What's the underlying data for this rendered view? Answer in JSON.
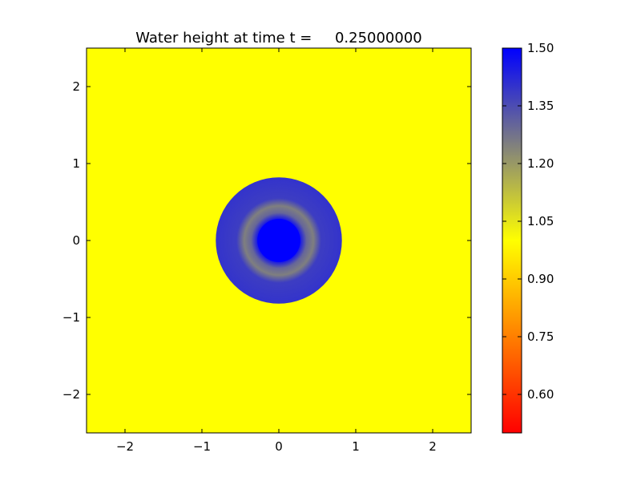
{
  "chart_data": {
    "type": "heatmap",
    "title": "Water height at time t =     0.25000000",
    "xlabel": "",
    "ylabel": "",
    "xlim": [
      -2.5,
      2.5
    ],
    "ylim": [
      -2.5,
      2.5
    ],
    "x_ticks": [
      -2,
      -1,
      0,
      1,
      2
    ],
    "y_ticks": [
      -2,
      -1,
      0,
      1,
      2
    ],
    "x_tick_labels": [
      "−2",
      "−1",
      "0",
      "1",
      "2"
    ],
    "y_tick_labels": [
      "−2",
      "−1",
      "0",
      "1",
      "2"
    ],
    "grid": false,
    "field": {
      "description_values": "radially symmetric water height centered at origin",
      "background_value": 1.0,
      "inner_disk_radius": 0.28,
      "inner_disk_value": 1.5,
      "ring_outer_radius": 0.82,
      "ring_profile": [
        {
          "r": 0.28,
          "value": 1.45
        },
        {
          "r": 0.36,
          "value": 1.3
        },
        {
          "r": 0.45,
          "value": 1.25
        },
        {
          "r": 0.55,
          "value": 1.38
        },
        {
          "r": 0.82,
          "value": 1.4
        }
      ]
    },
    "colorbar": {
      "min": 0.5,
      "max": 1.5,
      "ticks": [
        0.6,
        0.75,
        0.9,
        1.05,
        1.2,
        1.35,
        1.5
      ],
      "tick_labels": [
        "0.60",
        "0.75",
        "0.90",
        "1.05",
        "1.20",
        "1.35",
        "1.50"
      ],
      "colors": [
        {
          "value": 0.5,
          "color": "#ff0000"
        },
        {
          "value": 0.75,
          "color": "#ff7f00"
        },
        {
          "value": 1.0,
          "color": "#ffff00"
        },
        {
          "value": 1.25,
          "color": "#7f7f7f"
        },
        {
          "value": 1.5,
          "color": "#0000ff"
        }
      ]
    }
  }
}
